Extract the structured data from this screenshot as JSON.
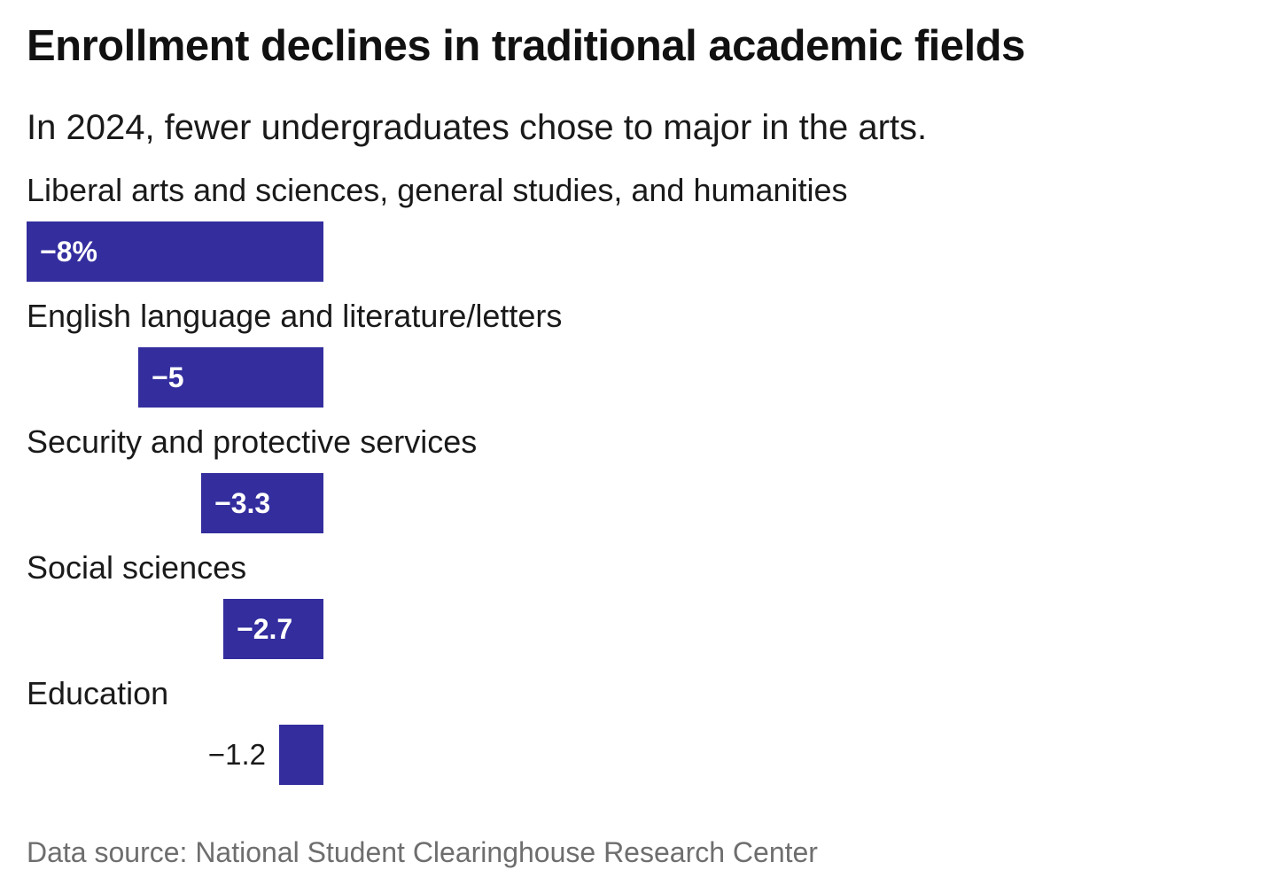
{
  "header": {
    "title": "Enrollment declines in traditional academic fields",
    "subtitle": "In 2024, fewer undergraduates chose to major in the arts."
  },
  "chart_data": {
    "type": "bar",
    "orientation": "horizontal",
    "title": "Enrollment declines in traditional academic fields",
    "subtitle": "In 2024, fewer undergraduates chose to major in the arts.",
    "categories": [
      "Liberal arts and sciences, general studies, and humanities",
      "English language and literature/letters",
      "Security and protective services",
      "Social sciences",
      "Education"
    ],
    "values": [
      -8,
      -5,
      -3.3,
      -2.7,
      -1.2
    ],
    "value_labels": [
      "−8%",
      "−5",
      "−3.3",
      "−2.7",
      "−1.2"
    ],
    "unit": "percent change",
    "xlim": [
      -8,
      0
    ],
    "grid": "off",
    "legend": "none",
    "bar_color": "#332d9e",
    "inside_label_color": "#ffffff",
    "outside_label_color": "#1a1a1a",
    "value_label_position": [
      "inside",
      "inside",
      "inside",
      "inside",
      "outside"
    ]
  },
  "footer": {
    "source": "Data source: National Student Clearinghouse Research Center"
  }
}
